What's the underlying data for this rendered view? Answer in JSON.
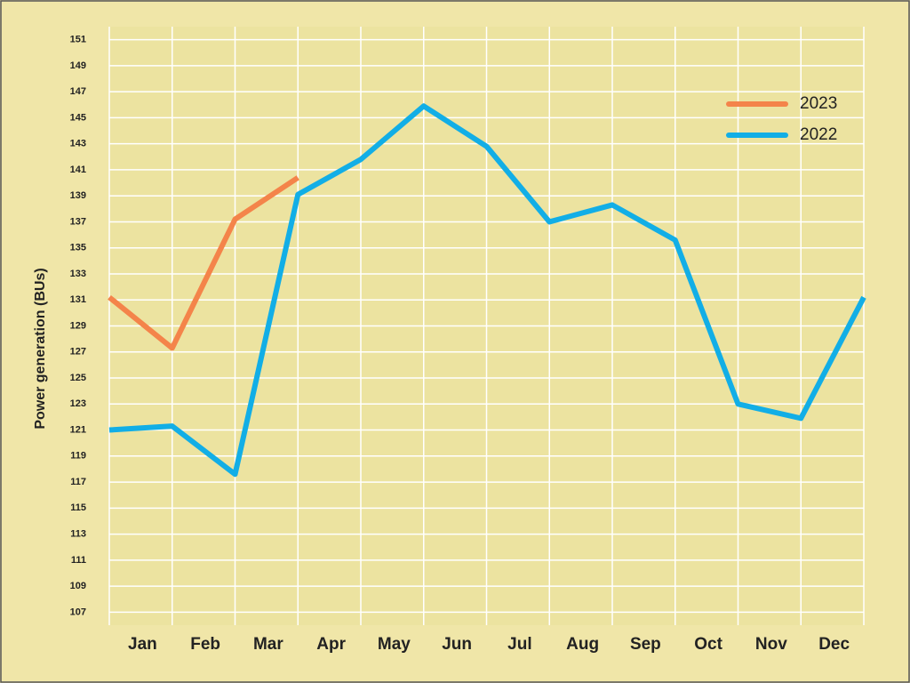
{
  "chart_data": {
    "type": "line",
    "y_label": "Power generation (BUs)",
    "categories": [
      "Jan",
      "Feb",
      "Mar",
      "Apr",
      "May",
      "Jun",
      "Jul",
      "Aug",
      "Sep",
      "Oct",
      "Nov",
      "Dec",
      null
    ],
    "series": [
      {
        "name": "2023",
        "color": "#f4844a",
        "values": [
          131.2,
          127.3,
          137.2,
          140.4,
          null,
          null,
          null,
          null,
          null,
          null,
          null,
          null,
          null
        ]
      },
      {
        "name": "2022",
        "color": "#12aee6",
        "values": [
          121,
          121.3,
          117.6,
          139.1,
          141.8,
          145.9,
          142.8,
          137,
          138.3,
          135.6,
          123,
          121.9,
          131.2
        ]
      }
    ],
    "ylim": [
      106,
      152
    ],
    "yticks": [
      107,
      109,
      111,
      113,
      115,
      117,
      119,
      121,
      123,
      125,
      127,
      129,
      131,
      133,
      135,
      137,
      139,
      141,
      143,
      145,
      147,
      149,
      151
    ],
    "grid": true,
    "legend": "upper right"
  }
}
